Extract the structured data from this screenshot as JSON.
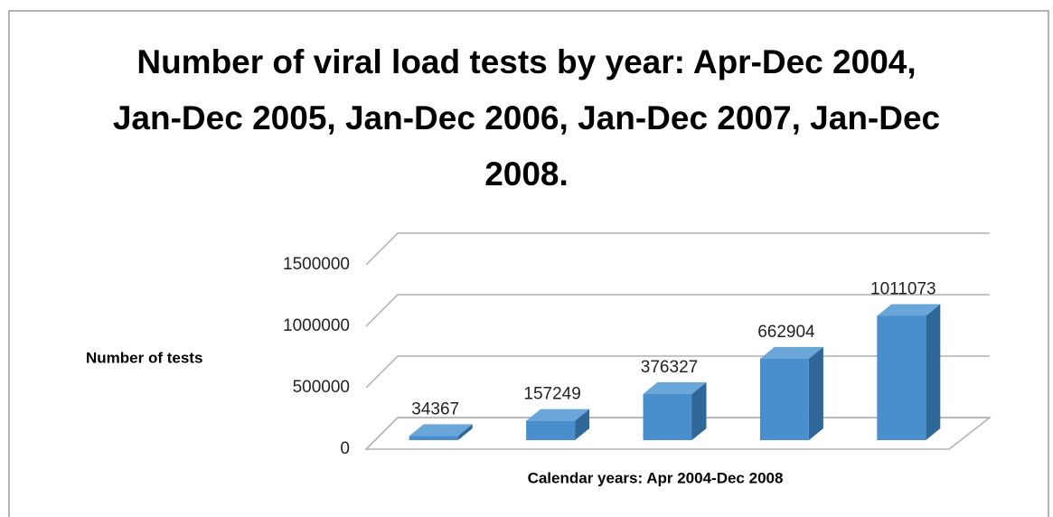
{
  "chart_data": {
    "type": "bar3d",
    "title": "Number of viral load tests by year: Apr-Dec 2004, Jan-Dec 2005, Jan-Dec 2006, Jan-Dec 2007, Jan-Dec 2008.",
    "x_label": "Calendar years: Apr 2004-Dec 2008",
    "y_label": "Number of tests",
    "categories": [
      null,
      null,
      null,
      null,
      null
    ],
    "values": [
      34367,
      157249,
      376327,
      662904,
      1011073
    ],
    "color": "#4a8fcd",
    "ylim": [
      0,
      1500000
    ],
    "yticks": [
      0,
      500000,
      1000000,
      1500000
    ],
    "grid": true
  }
}
